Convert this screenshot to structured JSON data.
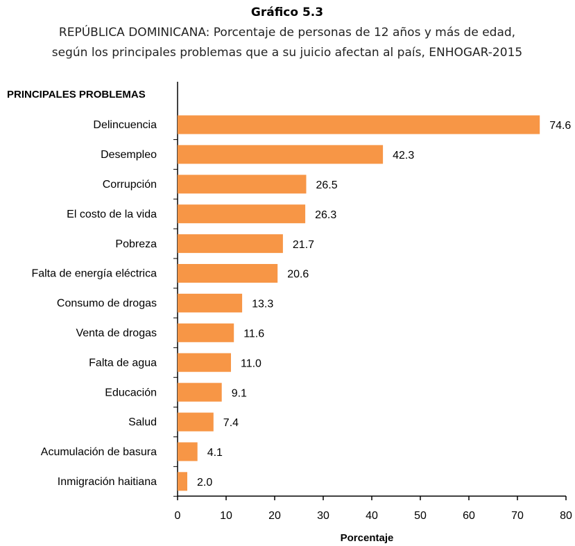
{
  "chart_data": {
    "type": "bar",
    "orientation": "horizontal",
    "title": "Gráfico 5.3",
    "subtitle": [
      "REPÚBLICA DOMINICANA: Porcentaje de personas de 12 años y más de edad,",
      "según los principales problemas que a su juicio afectan al país, ENHOGAR-2015"
    ],
    "y_label": "PRINCIPALES PROBLEMAS",
    "x_label": "Porcentaje",
    "categories": [
      "Delincuencia",
      "Desempleo",
      "Corrupción",
      "El costo de la vida",
      "Pobreza",
      "Falta de energía eléctrica",
      "Consumo de drogas",
      "Venta de drogas",
      "Falta de agua",
      "Educación",
      "Salud",
      "Acumulación de basura",
      "Inmigración haitiana"
    ],
    "values": [
      74.6,
      42.3,
      26.5,
      26.3,
      21.7,
      20.6,
      13.3,
      11.6,
      11.0,
      9.1,
      7.4,
      4.1,
      2.0
    ],
    "value_labels": [
      "74.6",
      "42.3",
      "26.5",
      "26.3",
      "21.7",
      "20.6",
      "13.3",
      "11.6",
      "11.0",
      "9.1",
      "7.4",
      "4.1",
      "2.0"
    ],
    "color": "#f79646",
    "xlim": [
      0,
      80
    ],
    "xticks": [
      0,
      10,
      20,
      30,
      40,
      50,
      60,
      70,
      80
    ]
  }
}
